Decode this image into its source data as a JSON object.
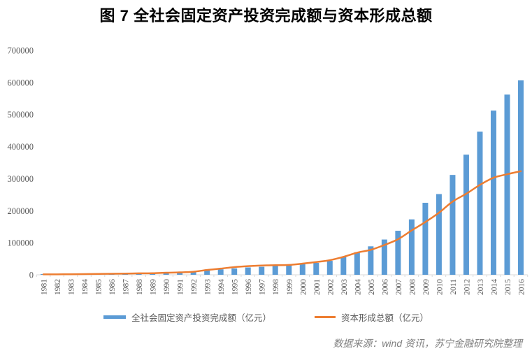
{
  "title": "图 7 全社会固定资产投资完成额与资本形成总额",
  "source_note": "数据来源：wind 资讯，苏宁金融研究院整理",
  "legend": {
    "bar_label": "全社会固定资产投资完成额（亿元）",
    "line_label": "资本形成总额（亿元）"
  },
  "colors": {
    "bar": "#5B9BD5",
    "line": "#ED7D31",
    "axis": "#D9D9D9",
    "axis_label": "#595959",
    "title": "#000000",
    "source": "#808080",
    "background": "#FFFFFF"
  },
  "chart_data": {
    "type": "bar",
    "combo": "bar+line",
    "title": "图 7 全社会固定资产投资完成额与资本形成总额",
    "xlabel": "",
    "ylabel": "",
    "ylim": [
      0,
      700000
    ],
    "yticks": [
      0,
      100000,
      200000,
      300000,
      400000,
      500000,
      600000,
      700000
    ],
    "grid": false,
    "legend_position": "bottom",
    "x_tick_rotation": -90,
    "categories": [
      1981,
      1982,
      1983,
      1984,
      1985,
      1986,
      1987,
      1988,
      1989,
      1990,
      1991,
      1992,
      1993,
      1994,
      1995,
      1996,
      1997,
      1998,
      1999,
      2000,
      2001,
      2002,
      2003,
      2004,
      2005,
      2006,
      2007,
      2008,
      2009,
      2010,
      2011,
      2012,
      2013,
      2014,
      2015,
      2016
    ],
    "series": [
      {
        "name": "全社会固定资产投资完成额（亿元）",
        "type": "bar",
        "color": "#5B9BD5",
        "values": [
          961,
          1230,
          1430,
          1833,
          2543,
          3121,
          3792,
          4754,
          4410,
          4517,
          5595,
          8080,
          13072,
          17042,
          20019,
          22914,
          24941,
          28406,
          29855,
          32918,
          37214,
          43500,
          55567,
          70477,
          88774,
          109998,
          137324,
          172828,
          224599,
          251684,
          311485,
          374695,
          446294,
          512021,
          561999,
          606466
        ]
      },
      {
        "name": "资本形成总额（亿元）",
        "type": "line",
        "color": "#ED7D31",
        "values": [
          1297,
          1477,
          1749,
          2250,
          2825,
          3196,
          3697,
          4604,
          4829,
          6444,
          7517,
          9636,
          14998,
          19260,
          23877,
          26867,
          28968,
          29876,
          30701,
          34843,
          39769,
          45565,
          55963,
          69168,
          77857,
          92954,
          110943,
          138325,
          164463,
          193604,
          228344,
          252773,
          280410,
          302717,
          313587,
          323100
        ]
      }
    ]
  }
}
